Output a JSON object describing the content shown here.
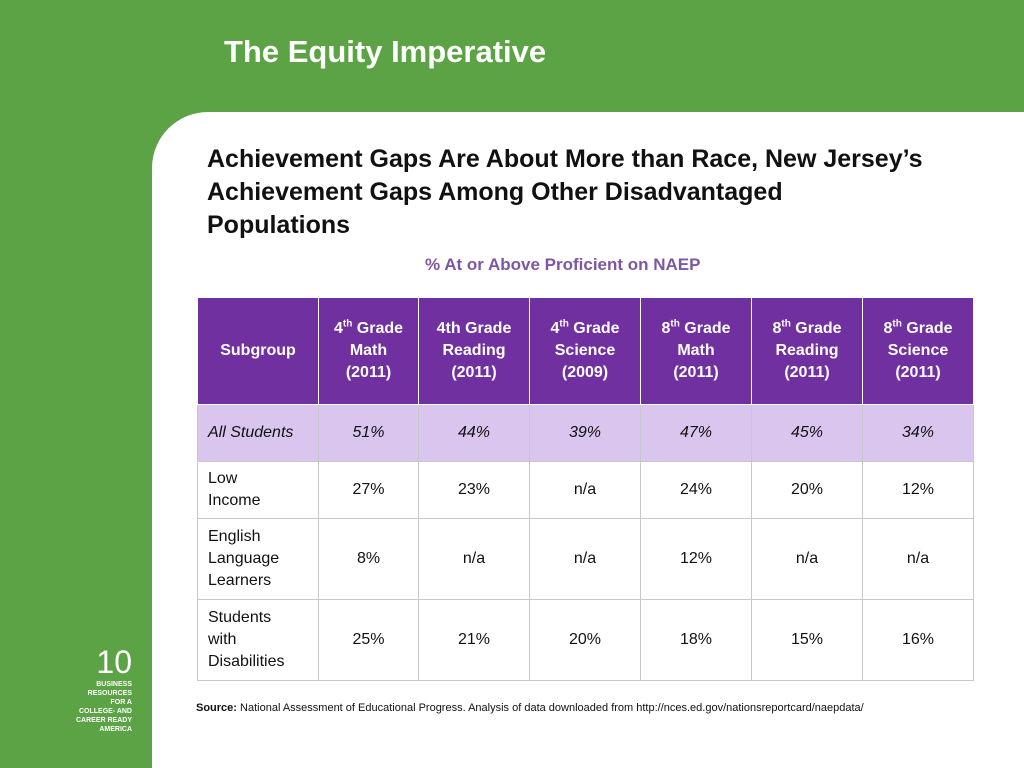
{
  "slide": {
    "title": "The Equity Imperative",
    "heading": "Achievement Gaps Are About More than Race, New Jersey’s Achievement Gaps Among Other Disadvantaged Populations",
    "subtitle": "% At or Above Proficient on NAEP",
    "page_number": "10",
    "brand_lines": [
      "BUSINESS",
      "RESOURCES",
      "FOR A",
      "COLLEGE- AND",
      "CAREER READY",
      "AMERICA"
    ]
  },
  "table": {
    "header_subgroup": "Subgroup",
    "columns": [
      {
        "grade": "4",
        "sup": "th",
        "rest": " Grade",
        "subject": "Math",
        "year": "(2011)"
      },
      {
        "grade": "4th Grade",
        "sup": "",
        "rest": "",
        "subject": "Reading",
        "year": "(2011)"
      },
      {
        "grade": "4",
        "sup": "th",
        "rest": " Grade",
        "subject": "Science",
        "year": "(2009)"
      },
      {
        "grade": "8",
        "sup": "th",
        "rest": " Grade",
        "subject": "Math",
        "year": "(2011)"
      },
      {
        "grade": "8",
        "sup": "th",
        "rest": " Grade",
        "subject": "Reading",
        "year": "(2011)"
      },
      {
        "grade": "8",
        "sup": "th",
        "rest": " Grade",
        "subject": "Science",
        "year": "(2011)"
      }
    ],
    "rows": [
      {
        "label": "All Students",
        "values": [
          "51%",
          "44%",
          "39%",
          "47%",
          "45%",
          "34%"
        ]
      },
      {
        "label": "Low Income",
        "values": [
          "27%",
          "23%",
          "n/a",
          "24%",
          "20%",
          "12%"
        ]
      },
      {
        "label": "English Language Learners",
        "values": [
          "8%",
          "n/a",
          "n/a",
          "12%",
          "n/a",
          "n/a"
        ]
      },
      {
        "label": "Students with Disabilities",
        "values": [
          "25%",
          "21%",
          "20%",
          "18%",
          "15%",
          "16%"
        ]
      }
    ]
  },
  "source": {
    "label": "Source:",
    "text": " National Assessment of Educational Progress. Analysis of data downloaded from http://nces.ed.gov/nationsreportcard/naepdata/"
  },
  "colors": {
    "background_green": "#5ba344",
    "header_purple": "#7030a0",
    "highlight_lavender": "#d9c5ee",
    "subtitle_purple": "#7f56a3"
  }
}
